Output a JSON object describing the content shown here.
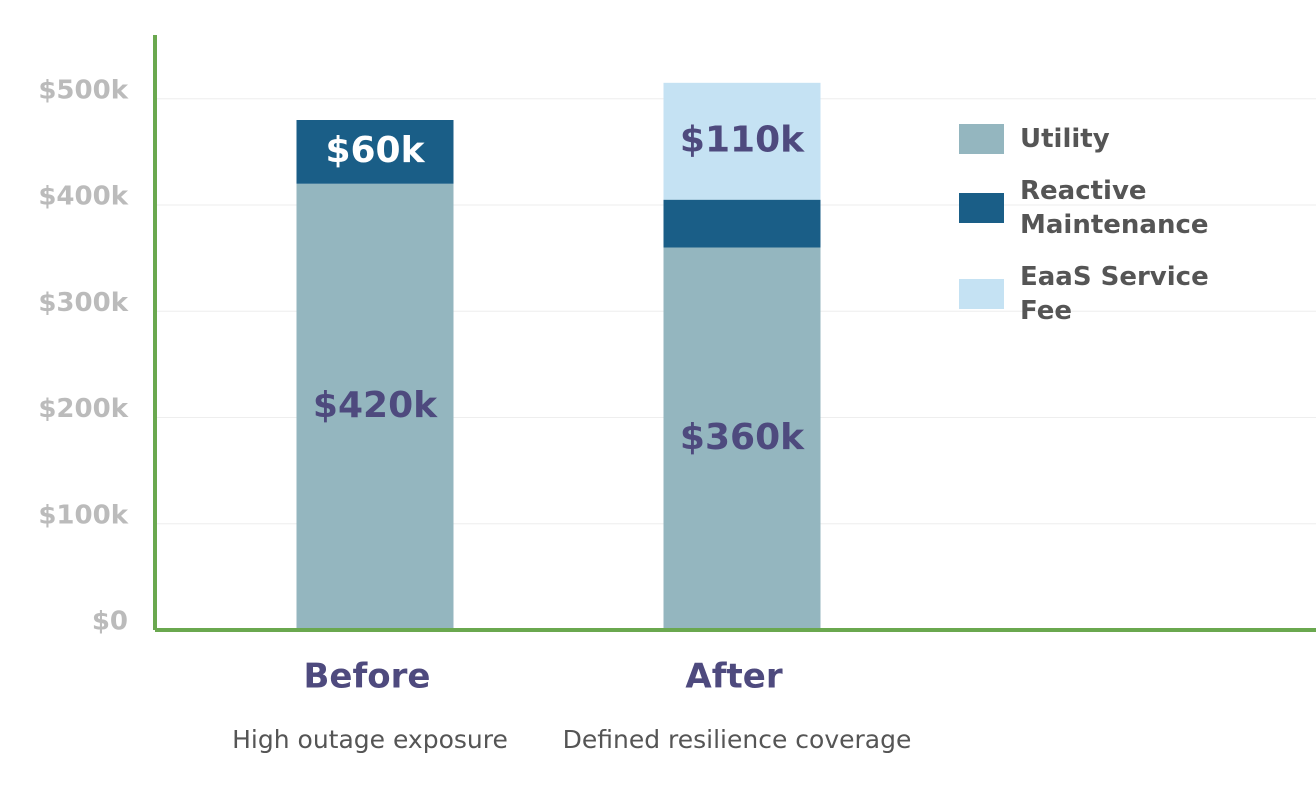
{
  "chart_data": {
    "type": "stacked-bar",
    "categories": [
      "Before",
      "After"
    ],
    "category_subtitles": [
      "High outage exposure",
      "Defined resilience coverage"
    ],
    "series": [
      {
        "name": "Utility",
        "color": "#94b6bf",
        "values": [
          420000,
          360000
        ],
        "value_labels": [
          "$420k",
          "$360k"
        ],
        "label_color": "#4e4a7e"
      },
      {
        "name": "Reactive Maintenance",
        "color": "#1a5e87",
        "values": [
          60000,
          45000
        ],
        "value_labels": [
          "$60k",
          null
        ],
        "label_color": "#ffffff"
      },
      {
        "name": "EaaS Service Fee",
        "color": "#c5e2f3",
        "values": [
          0,
          110000
        ],
        "value_labels": [
          null,
          "$110k"
        ],
        "label_color": "#4e4a7e"
      }
    ],
    "ylim": [
      0,
      560000
    ],
    "yticks": [
      {
        "value": 0,
        "label": "$0"
      },
      {
        "value": 100000,
        "label": "$100k"
      },
      {
        "value": 200000,
        "label": "$200k"
      },
      {
        "value": 300000,
        "label": "$300k"
      },
      {
        "value": 400000,
        "label": "$400k"
      },
      {
        "value": 500000,
        "label": "$500k"
      }
    ],
    "grid": true,
    "axis_color": "#6aa84f",
    "legend": "right"
  }
}
